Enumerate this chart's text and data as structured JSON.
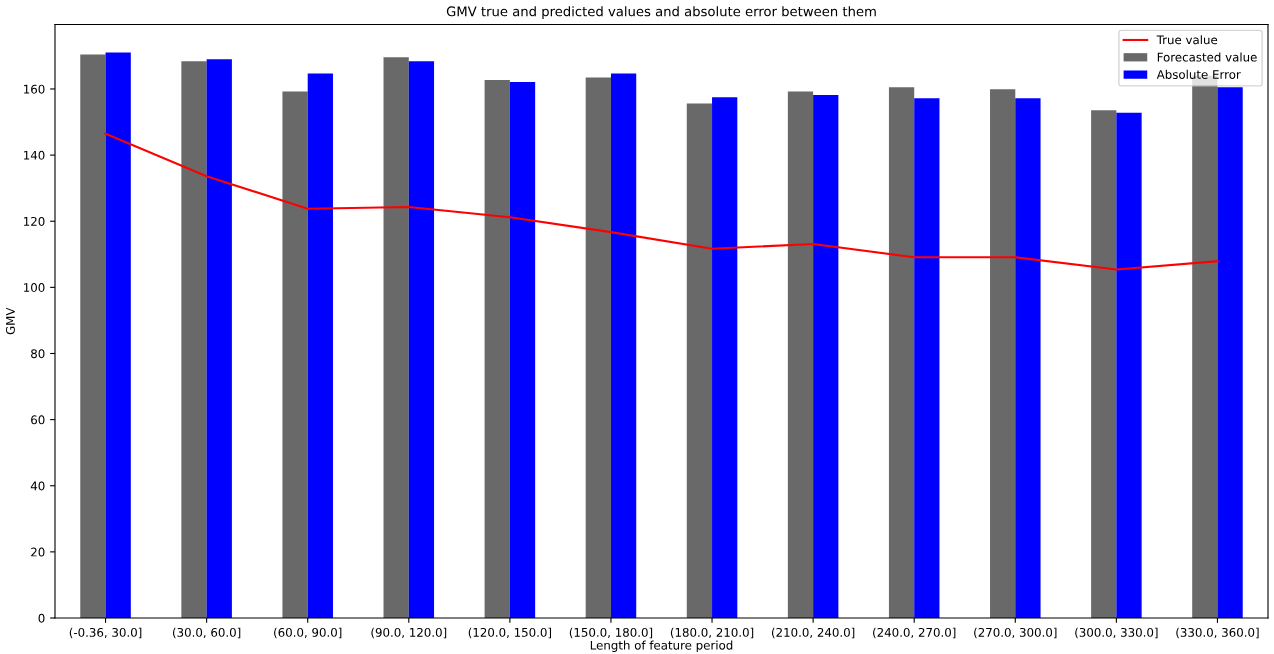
{
  "chart_data": {
    "type": "bar",
    "title": "GMV true and predicted values and absolute error between them",
    "xlabel": "Length of feature period",
    "ylabel": "GMV",
    "categories": [
      "(-0.36, 30.0]",
      "(30.0, 60.0]",
      "(60.0, 90.0]",
      "(90.0, 120.0]",
      "(120.0, 150.0]",
      "(150.0, 180.0]",
      "(180.0, 210.0]",
      "(210.0, 240.0]",
      "(240.0, 270.0]",
      "(270.0, 300.0]",
      "(300.0, 330.0]",
      "(330.0, 360.0]"
    ],
    "series": [
      {
        "name": "True value",
        "type": "line",
        "color": "#ff0000",
        "values": [
          146.5,
          133.6,
          123.8,
          124.3,
          121.2,
          116.7,
          111.7,
          113.1,
          109.1,
          109.1,
          105.4,
          107.9
        ]
      },
      {
        "name": "Forecasted value",
        "color": "#696969",
        "values": [
          170.4,
          168.4,
          159.2,
          169.6,
          162.7,
          163.5,
          155.6,
          159.2,
          160.5,
          159.9,
          153.6,
          164
        ]
      },
      {
        "name": "Absolute Error",
        "color": "#0000ff",
        "values": [
          171.0,
          169.0,
          164.7,
          168.4,
          162.1,
          164.7,
          157.5,
          158.2,
          157.2,
          157.2,
          152.8,
          160.5
        ]
      }
    ],
    "ylim": [
      0,
      179.5
    ],
    "yticks": [
      0,
      20,
      40,
      60,
      80,
      100,
      120,
      140,
      160
    ],
    "grid": false,
    "legend": "top right",
    "marker": "none",
    "line_style": "solid"
  }
}
